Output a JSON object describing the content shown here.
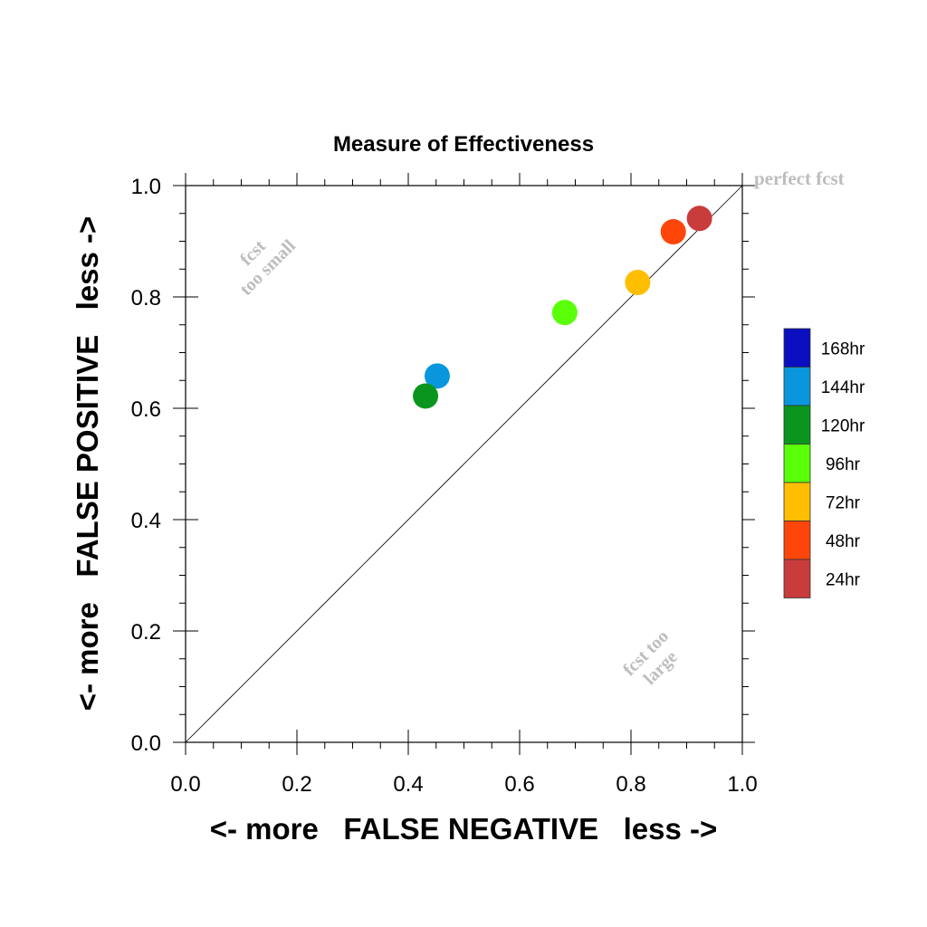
{
  "chart_data": {
    "type": "scatter",
    "title": "Measure of Effectiveness",
    "xlabel": "<- more   FALSE NEGATIVE   less ->",
    "ylabel": "<- more   FALSE POSITIVE   less ->",
    "xlim": [
      0.0,
      1.0
    ],
    "ylim": [
      0.0,
      1.0
    ],
    "x_ticks": [
      "0.0",
      "0.2",
      "0.4",
      "0.6",
      "0.8",
      "1.0"
    ],
    "y_ticks": [
      "0.0",
      "0.2",
      "0.4",
      "0.6",
      "0.8",
      "1.0"
    ],
    "grid": false,
    "diagonal_line": true,
    "annotations": {
      "perfect": "perfect fcst",
      "small_line1": "fcst",
      "small_line2": "too small",
      "large_line1": "fcst too",
      "large_line2": "large"
    },
    "legend_position": "right",
    "legend": [
      {
        "label": "168hr",
        "color": "#0a0fbf"
      },
      {
        "label": "144hr",
        "color": "#0a96dc"
      },
      {
        "label": "120hr",
        "color": "#0a961e"
      },
      {
        "label": "96hr",
        "color": "#5aff0a"
      },
      {
        "label": "72hr",
        "color": "#ffbe00"
      },
      {
        "label": "48hr",
        "color": "#ff460a"
      },
      {
        "label": "24hr",
        "color": "#c83c3c"
      }
    ],
    "points": [
      {
        "series": "24hr",
        "x": 0.923,
        "y": 0.941,
        "color": "#c83c3c"
      },
      {
        "series": "48hr",
        "x": 0.876,
        "y": 0.917,
        "color": "#ff460a"
      },
      {
        "series": "72hr",
        "x": 0.812,
        "y": 0.826,
        "color": "#ffbe00"
      },
      {
        "series": "96hr",
        "x": 0.681,
        "y": 0.772,
        "color": "#5aff0a"
      },
      {
        "series": "144hr",
        "x": 0.452,
        "y": 0.658,
        "color": "#0a96dc"
      },
      {
        "series": "120hr",
        "x": 0.431,
        "y": 0.622,
        "color": "#0a961e"
      }
    ]
  }
}
